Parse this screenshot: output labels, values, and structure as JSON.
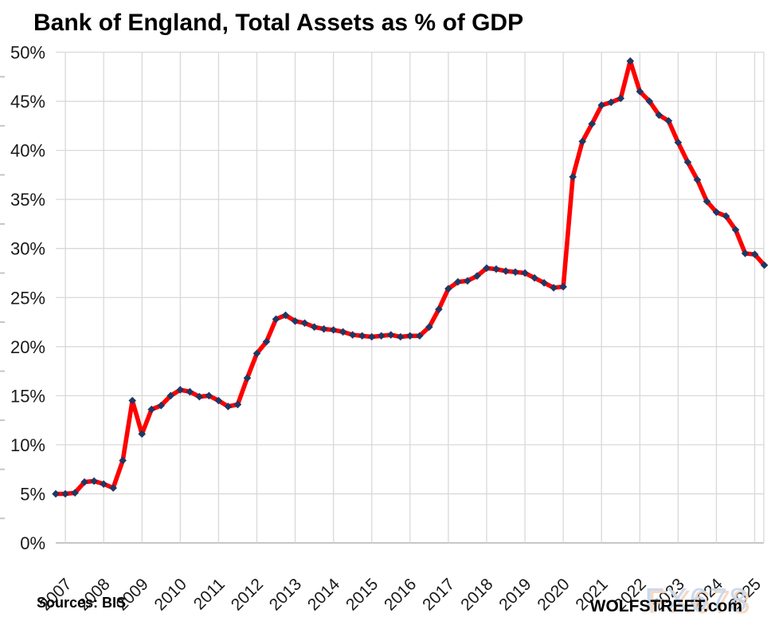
{
  "page": {
    "title": "Bank of England, Total Assets as % of GDP"
  },
  "footer": {
    "source_label": "Sources: BIS",
    "brand_label": "WOLFSTREET.com",
    "watermark": "FX678"
  },
  "colors": {
    "line": "#fe0000",
    "marker": "#1f3864",
    "gridline": "#d9d9d9",
    "axis_line": "#bfbfbf",
    "minor_tick": "#c6c6c6",
    "axis_text": "#1a1a1a",
    "title_text": "#000000",
    "watermark_fill": "#c6d8ee",
    "watermark_shadow": "#f4d5bc"
  },
  "chart_data": {
    "type": "line",
    "title": "Bank of England, Total Assets as % of GDP",
    "source": "Sources: BIS",
    "xlabel": "",
    "ylabel": "",
    "frequency": "quarterly",
    "start_period": "2006-Q4",
    "end_period": "2025-Q2",
    "ylim": [
      0,
      50
    ],
    "y_tick_step": 5,
    "y_tick_labels": [
      "0%",
      "5%",
      "10%",
      "15%",
      "20%",
      "25%",
      "30%",
      "35%",
      "40%",
      "45%",
      "50%"
    ],
    "x_tick_labels": [
      "2007",
      "2008",
      "2009",
      "2010",
      "2011",
      "2012",
      "2013",
      "2014",
      "2015",
      "2016",
      "2017",
      "2018",
      "2019",
      "2020",
      "2021",
      "2022",
      "2023",
      "2024",
      "2025"
    ],
    "grid": true,
    "legend": "none",
    "series": [
      {
        "name": "Bank of England total assets as % of GDP",
        "color": "#fe0000",
        "marker": "diamond",
        "marker_color": "#1f3864",
        "values": [
          5.0,
          5.0,
          5.1,
          6.2,
          6.3,
          6.0,
          5.6,
          8.4,
          14.5,
          11.1,
          13.6,
          14.0,
          15.0,
          15.6,
          15.4,
          14.9,
          15.0,
          14.5,
          13.9,
          14.1,
          16.8,
          19.3,
          20.5,
          22.8,
          23.2,
          22.6,
          22.4,
          22.0,
          21.8,
          21.7,
          21.5,
          21.2,
          21.1,
          21.0,
          21.1,
          21.2,
          21.0,
          21.1,
          21.1,
          22.0,
          23.8,
          25.9,
          26.6,
          26.7,
          27.2,
          28.0,
          27.9,
          27.7,
          27.6,
          27.5,
          27.0,
          26.5,
          26.0,
          26.1,
          37.3,
          40.9,
          42.7,
          44.6,
          44.9,
          45.3,
          49.1,
          46.0,
          45.0,
          43.6,
          43.0,
          40.8,
          38.8,
          37.0,
          34.8,
          33.7,
          33.3,
          31.9,
          29.5,
          29.4,
          28.3
        ]
      }
    ]
  }
}
